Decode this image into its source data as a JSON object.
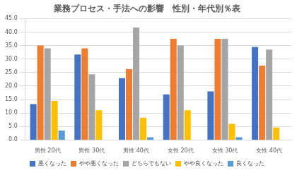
{
  "chart_data": {
    "type": "bar",
    "title": "業務プロセス・手法への影響　性別・年代別％表",
    "categories": [
      "男性 20代",
      "男性 30代",
      "男性 40代",
      "女性 20代",
      "女性 30代",
      "女性 40代"
    ],
    "series": [
      {
        "name": "悪くなった",
        "color": "#4472c4",
        "values": [
          13.3,
          31.7,
          22.9,
          16.9,
          18.0,
          34.5
        ]
      },
      {
        "name": "やや悪くなった",
        "color": "#ed7d31",
        "values": [
          35.0,
          34.0,
          26.3,
          37.5,
          37.5,
          27.6
        ]
      },
      {
        "name": "どちらでもない",
        "color": "#a5a5a5",
        "values": [
          34.0,
          24.4,
          41.7,
          35.0,
          37.5,
          33.5
        ]
      },
      {
        "name": "やや良くなった",
        "color": "#ffc000",
        "values": [
          14.5,
          11.0,
          8.3,
          11.0,
          6.0,
          4.6
        ]
      },
      {
        "name": "良くなった",
        "color": "#5b9bd5",
        "values": [
          3.5,
          0,
          1.0,
          0,
          1.0,
          0
        ]
      }
    ],
    "ylim": [
      0,
      45
    ],
    "yticks": [
      {
        "value": 0,
        "label": "0.0"
      },
      {
        "value": 5,
        "label": "5.0"
      },
      {
        "value": 10,
        "label": "10.0"
      },
      {
        "value": 15,
        "label": "15.0"
      },
      {
        "value": 20,
        "label": "20.0"
      },
      {
        "value": 25,
        "label": "25.0"
      },
      {
        "value": 30,
        "label": "30.0"
      },
      {
        "value": 35,
        "label": "35.0"
      },
      {
        "value": 40,
        "label": "40.0"
      },
      {
        "value": 45,
        "label": "45.0"
      }
    ],
    "grid": true,
    "legend": "bottom"
  }
}
